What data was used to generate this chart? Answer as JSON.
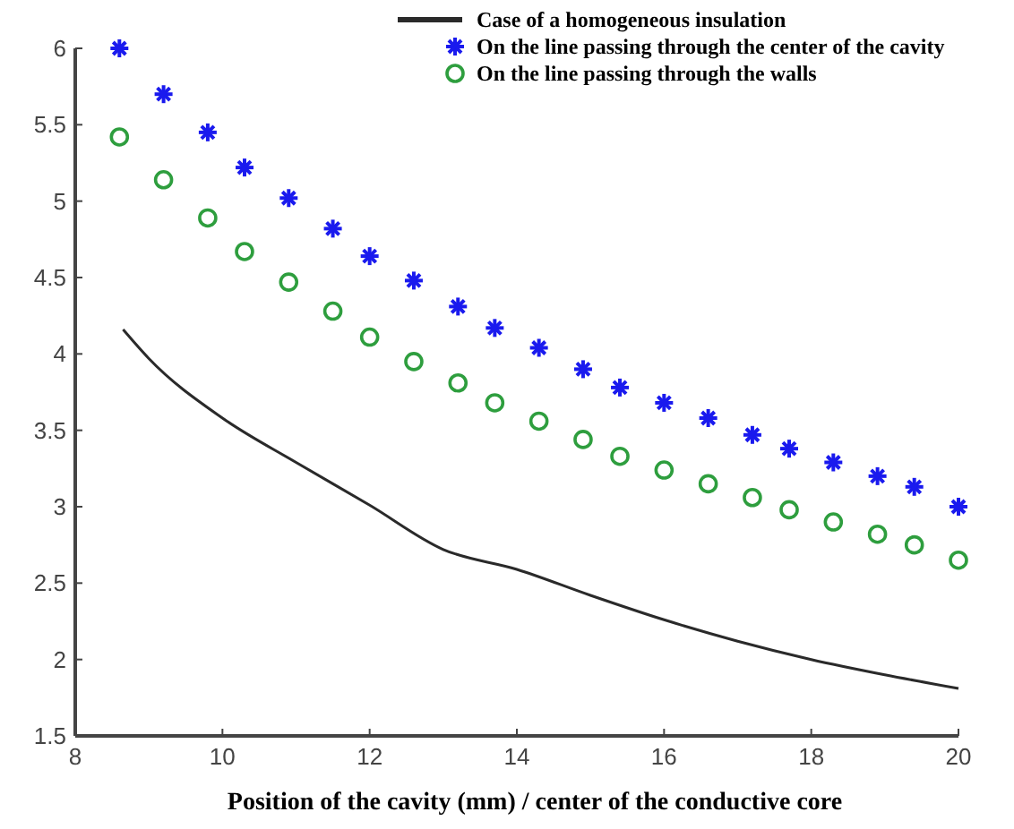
{
  "chart_data": {
    "type": "scatter",
    "xlabel": "Position of the cavity (mm) / center of the conductive core",
    "xlim": [
      8,
      20
    ],
    "ylim": [
      1.5,
      6
    ],
    "xticks": [
      8,
      10,
      12,
      14,
      16,
      18,
      20
    ],
    "yticks": [
      1.5,
      2,
      2.5,
      3,
      3.5,
      4,
      4.5,
      5,
      5.5,
      6
    ],
    "grid": false,
    "legend": "top right",
    "series": [
      {
        "name": "Case of a homogeneous insulation",
        "type": "line",
        "color": "#2a2a2a",
        "marker": "none",
        "line_style": "solid",
        "x": [
          8.65,
          9,
          10,
          11,
          12,
          13,
          14,
          15,
          16,
          17,
          18,
          19,
          20
        ],
        "values": [
          4.16,
          3.97,
          3.58,
          3.29,
          3.01,
          2.72,
          2.59,
          2.42,
          2.26,
          2.12,
          2.0,
          1.9,
          1.81
        ]
      },
      {
        "name": "On the line passing through the center of the cavity",
        "color": "#1a1aee",
        "marker": "cross",
        "x": [
          8.6,
          9.2,
          9.8,
          10.3,
          10.9,
          11.5,
          12.0,
          12.6,
          13.2,
          13.7,
          14.3,
          14.9,
          15.4,
          16.0,
          16.6,
          17.2,
          17.7,
          18.3,
          18.9,
          19.4,
          20.0
        ],
        "values": [
          6.0,
          5.7,
          5.45,
          5.22,
          5.02,
          4.82,
          4.64,
          4.48,
          4.31,
          4.17,
          4.04,
          3.9,
          3.78,
          3.68,
          3.58,
          3.47,
          3.38,
          3.29,
          3.2,
          3.13,
          3.0
        ]
      },
      {
        "name": "On the line passing through the walls",
        "color": "#2e9e3e",
        "marker": "circle",
        "x": [
          8.6,
          9.2,
          9.8,
          10.3,
          10.9,
          11.5,
          12.0,
          12.6,
          13.2,
          13.7,
          14.3,
          14.9,
          15.4,
          16.0,
          16.6,
          17.2,
          17.7,
          18.3,
          18.9,
          19.4,
          20.0
        ],
        "values": [
          5.42,
          5.14,
          4.89,
          4.67,
          4.47,
          4.28,
          4.11,
          3.95,
          3.81,
          3.68,
          3.56,
          3.44,
          3.33,
          3.24,
          3.15,
          3.06,
          2.98,
          2.9,
          2.82,
          2.75,
          2.65
        ]
      }
    ]
  }
}
